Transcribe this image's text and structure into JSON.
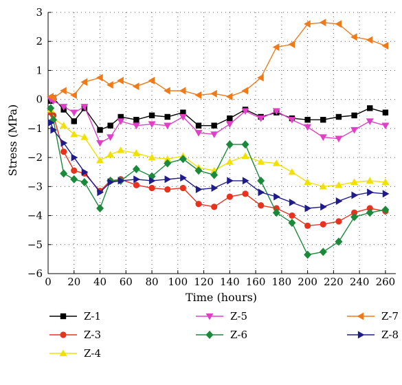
{
  "chart_data": {
    "type": "line",
    "title": "",
    "xlabel": "Time (hours)",
    "ylabel": "Stress (MPa)",
    "xlim": [
      0,
      268
    ],
    "ylim": [
      -6,
      3
    ],
    "xticks": [
      0,
      20,
      40,
      60,
      80,
      100,
      120,
      140,
      160,
      180,
      200,
      220,
      240,
      260
    ],
    "yticks": [
      3,
      2,
      1,
      0,
      -1,
      -2,
      -3,
      -4,
      -5,
      -6
    ],
    "xtick_labels": [
      "0",
      "20",
      "40",
      "60",
      "80",
      "100",
      "120",
      "140",
      "160",
      "180",
      "200",
      "220",
      "240",
      "260"
    ],
    "ytick_labels": [
      "3",
      "2",
      "1",
      "0",
      "−1",
      "−2",
      "−3",
      "−4",
      "−5",
      "−6"
    ],
    "grid": true,
    "legend_position": "bottom",
    "x": [
      2,
      4,
      12,
      20,
      28,
      40,
      48,
      56,
      68,
      80,
      92,
      104,
      116,
      128,
      140,
      152,
      164,
      176,
      188,
      200,
      212,
      224,
      236,
      248,
      260
    ],
    "series": [
      {
        "name": "Z-1",
        "color": "#000000",
        "marker": "square",
        "values": [
          -0.05,
          0.05,
          -0.35,
          -0.75,
          -0.3,
          -1.05,
          -0.9,
          -0.6,
          -0.7,
          -0.55,
          -0.6,
          -0.45,
          -0.9,
          -0.9,
          -0.65,
          -0.35,
          -0.6,
          -0.45,
          -0.65,
          -0.7,
          -0.7,
          -0.6,
          -0.55,
          -0.3,
          -0.45
        ]
      },
      {
        "name": "Z-3",
        "color": "#e8321e",
        "marker": "circle",
        "values": [
          -0.45,
          -0.55,
          -1.8,
          -2.45,
          -2.55,
          -3.15,
          -2.8,
          -2.75,
          -2.95,
          -3.05,
          -3.1,
          -3.05,
          -3.6,
          -3.7,
          -3.35,
          -3.25,
          -3.65,
          -3.75,
          -4.0,
          -4.35,
          -4.3,
          -4.2,
          -3.9,
          -3.75,
          -3.85
        ]
      },
      {
        "name": "Z-4",
        "color": "#f2e000",
        "marker": "triangle-up",
        "values": [
          -0.35,
          -0.65,
          -0.9,
          -1.2,
          -1.3,
          -2.1,
          -1.9,
          -1.75,
          -1.85,
          -2.0,
          -2.05,
          -1.95,
          -2.35,
          -2.45,
          -2.15,
          -1.95,
          -2.15,
          -2.2,
          -2.5,
          -2.85,
          -3.0,
          -2.95,
          -2.85,
          -2.8,
          -2.85
        ]
      },
      {
        "name": "Z-5",
        "color": "#e040c8",
        "marker": "triangle-down",
        "values": [
          0.0,
          -0.05,
          -0.25,
          -0.45,
          -0.25,
          -1.5,
          -1.3,
          -0.75,
          -0.9,
          -0.85,
          -0.9,
          -0.6,
          -1.15,
          -1.2,
          -0.85,
          -0.4,
          -0.65,
          -0.4,
          -0.7,
          -0.95,
          -1.3,
          -1.35,
          -1.05,
          -0.75,
          -0.9
        ]
      },
      {
        "name": "Z-6",
        "color": "#1a8a3a",
        "marker": "diamond",
        "values": [
          -0.3,
          -0.7,
          -2.55,
          -2.75,
          -2.85,
          -3.75,
          -2.8,
          -2.8,
          -2.4,
          -2.65,
          -2.2,
          -2.05,
          -2.45,
          -2.6,
          -1.55,
          -1.55,
          -2.8,
          -3.9,
          -4.25,
          -5.35,
          -5.25,
          -4.9,
          -4.05,
          -3.9,
          -3.8
        ]
      },
      {
        "name": "Z-7",
        "color": "#ef7a1a",
        "marker": "triangle-left",
        "values": [
          0.1,
          0.05,
          0.3,
          0.15,
          0.6,
          0.75,
          0.5,
          0.65,
          0.45,
          0.65,
          0.3,
          0.3,
          0.15,
          0.2,
          0.1,
          0.3,
          0.75,
          1.8,
          1.9,
          2.6,
          2.65,
          2.6,
          2.15,
          2.05,
          1.85
        ]
      },
      {
        "name": "Z-8",
        "color": "#1e1c8a",
        "marker": "triangle-right",
        "values": [
          -0.8,
          -1.05,
          -1.5,
          -2.0,
          -2.5,
          -3.2,
          -2.85,
          -2.8,
          -2.75,
          -2.8,
          -2.75,
          -2.7,
          -3.1,
          -3.05,
          -2.8,
          -2.8,
          -3.2,
          -3.35,
          -3.55,
          -3.75,
          -3.7,
          -3.5,
          -3.3,
          -3.2,
          -3.25
        ]
      }
    ]
  }
}
